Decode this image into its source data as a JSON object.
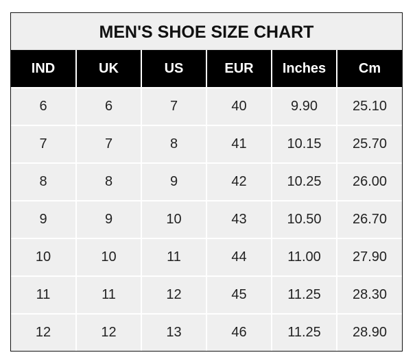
{
  "chart_data": {
    "type": "table",
    "title": "MEN'S SHOE SIZE CHART",
    "columns": [
      "IND",
      "UK",
      "US",
      "EUR",
      "Inches",
      "Cm"
    ],
    "rows": [
      [
        "6",
        "6",
        "7",
        "40",
        "9.90",
        "25.10"
      ],
      [
        "7",
        "7",
        "8",
        "41",
        "10.15",
        "25.70"
      ],
      [
        "8",
        "8",
        "9",
        "42",
        "10.25",
        "26.00"
      ],
      [
        "9",
        "9",
        "10",
        "43",
        "10.50",
        "26.70"
      ],
      [
        "10",
        "10",
        "11",
        "44",
        "11.00",
        "27.90"
      ],
      [
        "11",
        "11",
        "12",
        "45",
        "11.25",
        "28.30"
      ],
      [
        "12",
        "12",
        "13",
        "46",
        "11.25",
        "28.90"
      ]
    ],
    "colors": {
      "header_bg": "#000000",
      "header_text": "#ffffff",
      "cell_bg": "#efefef",
      "grid": "#ffffff"
    }
  }
}
